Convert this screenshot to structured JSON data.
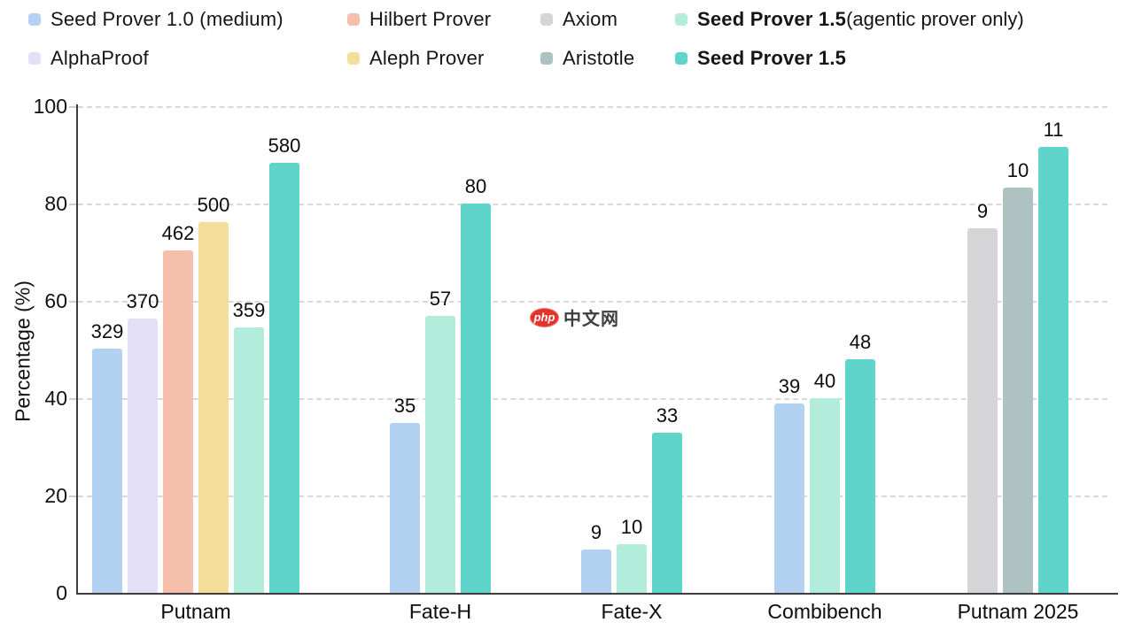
{
  "legend": {
    "rows": [
      [
        {
          "label": "Seed Prover 1.0 (medium)",
          "bold": false,
          "suffix": "",
          "color": "#b3d1f0"
        },
        {
          "label": "Hilbert Prover",
          "bold": false,
          "suffix": "",
          "color": "#f6bfab"
        },
        {
          "label": "Axiom",
          "bold": false,
          "suffix": "",
          "color": "#d5d4d6"
        },
        {
          "label": "Seed Prover 1.5",
          "bold": true,
          "suffix": " (agentic prover only)",
          "color": "#b2ecda"
        }
      ],
      [
        {
          "label": "AlphaProof",
          "bold": false,
          "suffix": "",
          "color": "#e3dff6"
        },
        {
          "label": "Aleph Prover",
          "bold": false,
          "suffix": "",
          "color": "#f4df9a"
        },
        {
          "label": "Aristotle",
          "bold": false,
          "suffix": "",
          "color": "#adc2c1"
        },
        {
          "label": "Seed Prover 1.5",
          "bold": true,
          "suffix": "",
          "color": "#5fd4ca"
        }
      ]
    ]
  },
  "watermark": {
    "logo_text": "php",
    "site_text": "中文网",
    "logo_color": "#e2342b"
  },
  "chart_data": {
    "type": "bar",
    "title": "",
    "xlabel": "",
    "ylabel": "Percentage (%)",
    "ylim": [
      0,
      100
    ],
    "yticks": [
      0,
      20,
      40,
      60,
      80,
      100
    ],
    "grid": "horizontal-dashed",
    "legend_position": "top",
    "categories": [
      "Putnam",
      "Fate-H",
      "Fate-X",
      "Combibench",
      "Putnam 2025"
    ],
    "groups": [
      {
        "category": "Putnam",
        "bars": [
          {
            "series": "Seed Prover 1.0 (medium)",
            "label": "329",
            "percent": 50.1,
            "color": "#b3d1f0"
          },
          {
            "series": "AlphaProof",
            "label": "370",
            "percent": 56.3,
            "color": "#e3dff6"
          },
          {
            "series": "Hilbert Prover",
            "label": "462",
            "percent": 70.3,
            "color": "#f6bfab"
          },
          {
            "series": "Aleph Prover",
            "label": "500",
            "percent": 76.1,
            "color": "#f4df9a"
          },
          {
            "series": "Seed Prover 1.5 (agentic prover only)",
            "label": "359",
            "percent": 54.6,
            "color": "#b2ecda"
          },
          {
            "series": "Seed Prover 1.5",
            "label": "580",
            "percent": 88.3,
            "color": "#5fd4ca"
          }
        ]
      },
      {
        "category": "Fate-H",
        "bars": [
          {
            "series": "Seed Prover 1.0 (medium)",
            "label": "35",
            "percent": 35,
            "color": "#b3d1f0"
          },
          {
            "series": "Seed Prover 1.5 (agentic prover only)",
            "label": "57",
            "percent": 57,
            "color": "#b2ecda"
          },
          {
            "series": "Seed Prover 1.5",
            "label": "80",
            "percent": 80,
            "color": "#5fd4ca"
          }
        ]
      },
      {
        "category": "Fate-X",
        "bars": [
          {
            "series": "Seed Prover 1.0 (medium)",
            "label": "9",
            "percent": 9,
            "color": "#b3d1f0"
          },
          {
            "series": "Seed Prover 1.5 (agentic prover only)",
            "label": "10",
            "percent": 10,
            "color": "#b2ecda"
          },
          {
            "series": "Seed Prover 1.5",
            "label": "33",
            "percent": 33,
            "color": "#5fd4ca"
          }
        ]
      },
      {
        "category": "Combibench",
        "bars": [
          {
            "series": "Seed Prover 1.0 (medium)",
            "label": "39",
            "percent": 39,
            "color": "#b3d1f0"
          },
          {
            "series": "Seed Prover 1.5 (agentic prover only)",
            "label": "40",
            "percent": 40,
            "color": "#b2ecda"
          },
          {
            "series": "Seed Prover 1.5",
            "label": "48",
            "percent": 48,
            "color": "#5fd4ca"
          }
        ]
      },
      {
        "category": "Putnam 2025",
        "bars": [
          {
            "series": "Axiom",
            "label": "9",
            "percent": 75,
            "color": "#d5d4d6"
          },
          {
            "series": "Aristotle",
            "label": "10",
            "percent": 83.3,
            "color": "#adc2c1"
          },
          {
            "series": "Seed Prover 1.5",
            "label": "11",
            "percent": 91.7,
            "color": "#5fd4ca"
          }
        ]
      }
    ]
  }
}
